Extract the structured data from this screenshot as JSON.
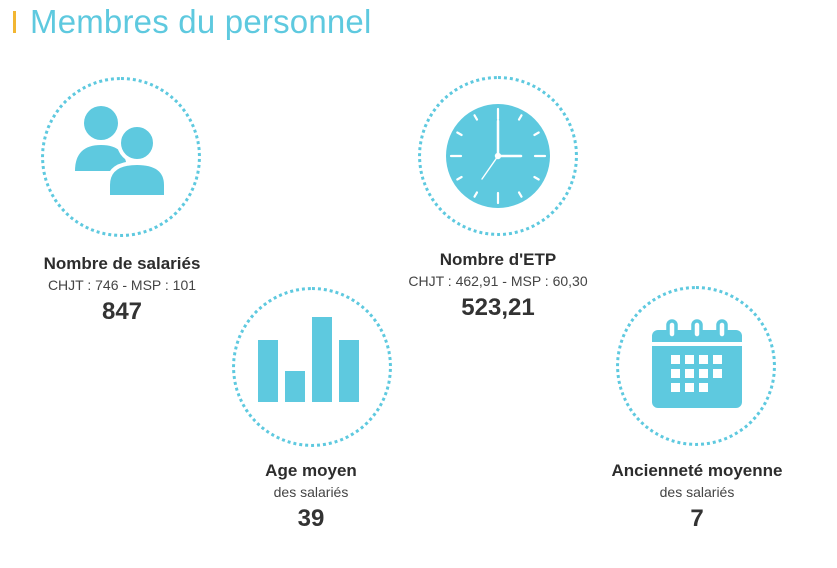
{
  "page": {
    "title": "Membres du personnel"
  },
  "colors": {
    "accent": "#5ec9df",
    "title_bar": "#f2b632",
    "text": "#333333"
  },
  "stats": [
    {
      "label": "Nombre de salariés",
      "detail": "CHJT : 746 - MSP : 101",
      "value": "847",
      "icon": "people-icon"
    },
    {
      "label": "Nombre d'ETP",
      "detail": "CHJT : 462,91 - MSP : 60,30",
      "value": "523,21",
      "icon": "clock-icon"
    },
    {
      "label": "Age moyen",
      "detail": "des salariés",
      "value": "39",
      "icon": "bar-chart-icon"
    },
    {
      "label": "Ancienneté moyenne",
      "detail": "des salariés",
      "value": "7",
      "icon": "calendar-icon"
    }
  ]
}
